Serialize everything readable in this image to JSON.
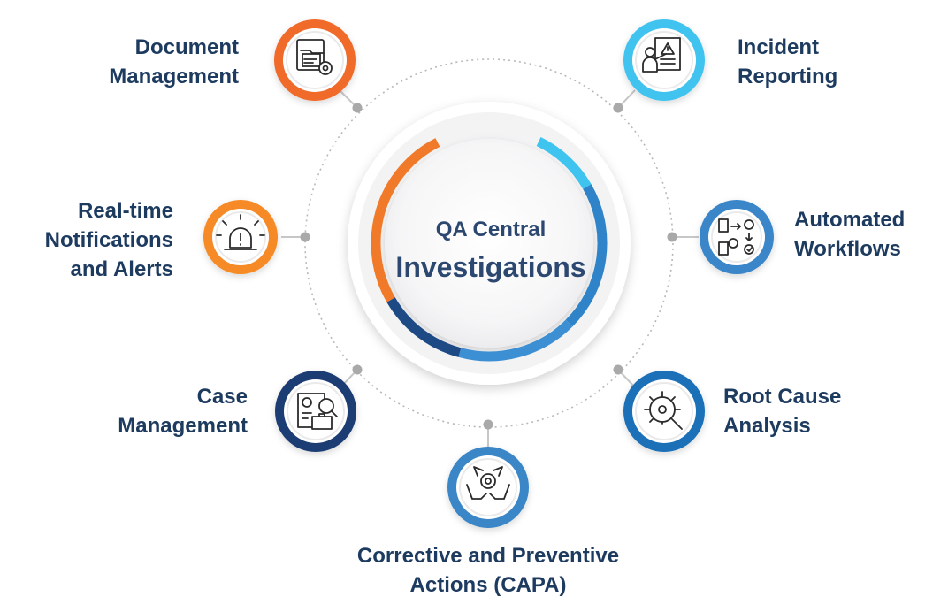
{
  "center": {
    "line1": "QA Central",
    "line2": "Investigations"
  },
  "items": [
    {
      "id": "document-management",
      "line1": "Document",
      "line2": "Management",
      "color": "#f06a2c",
      "icon": "folder-gear-icon"
    },
    {
      "id": "incident-reporting",
      "line1": "Incident",
      "line2": "Reporting",
      "color": "#3fc3ef",
      "icon": "presenter-warning-icon"
    },
    {
      "id": "real-time-notifications",
      "line1": "Real-time",
      "line2": "Notifications",
      "line3": "and Alerts",
      "color": "#f58a26",
      "icon": "alarm-bell-icon"
    },
    {
      "id": "automated-workflows",
      "line1": "Automated",
      "line2": "Workflows",
      "color": "#3b86c8",
      "icon": "workflow-icon"
    },
    {
      "id": "case-management",
      "line1": "Case",
      "line2": "Management",
      "color": "#1d3d73",
      "icon": "report-search-icon"
    },
    {
      "id": "root-cause-analysis",
      "line1": "Root Cause",
      "line2": "Analysis",
      "color": "#1a6fb8",
      "icon": "network-magnifier-icon"
    },
    {
      "id": "capa",
      "line1": "Corrective and Preventive",
      "line2": "Actions (CAPA)",
      "color": "#3a86c6",
      "icon": "hands-gear-icon"
    }
  ],
  "colors": {
    "text": "#1d3a5f",
    "ring_orange": "#f07a2a",
    "ring_light_blue": "#3fc3ef",
    "ring_mid_blue": "#2f84c9",
    "ring_navy": "#1d4a85",
    "dotted_circle": "#b9b9b9",
    "connector": "#c7c7c7"
  }
}
